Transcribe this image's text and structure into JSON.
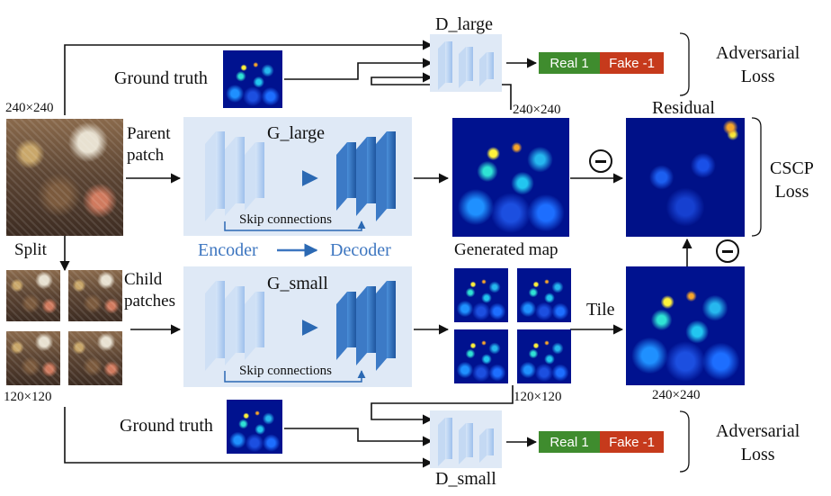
{
  "labels": {
    "d_large": "D_large",
    "d_small": "D_small",
    "ground_truth_top": "Ground truth",
    "ground_truth_bottom": "Ground truth",
    "size_240_left": "240×240",
    "size_240_mid": "240×240",
    "size_240_bottom": "240×240",
    "size_120_left": "120×120",
    "size_120_mid": "120×120",
    "parent_patch": "Parent\npatch",
    "child_patches": "Child\npatches",
    "split": "Split",
    "g_large": "G_large",
    "g_small": "G_small",
    "skip_top": "Skip connections",
    "skip_bottom": "Skip connections",
    "encoder": "Encoder",
    "decoder": "Decoder",
    "generated_map": "Generated map",
    "residual": "Residual",
    "tile": "Tile",
    "cscp_loss": "CSCP\nLoss",
    "adversarial_loss_top": "Adversarial\nLoss",
    "adversarial_loss_bottom": "Adversarial\nLoss",
    "real_top": "Real 1",
    "fake_top": "Fake -1",
    "real_bottom": "Real 1",
    "fake_bottom": "Fake -1"
  },
  "colors": {
    "real": "#3f8c2e",
    "fake": "#c63a1c",
    "panel": "#dfe9f6",
    "block_light": "#a8c8ee",
    "block_dark": "#2b69b3",
    "accent_text": "#3d76c0"
  }
}
